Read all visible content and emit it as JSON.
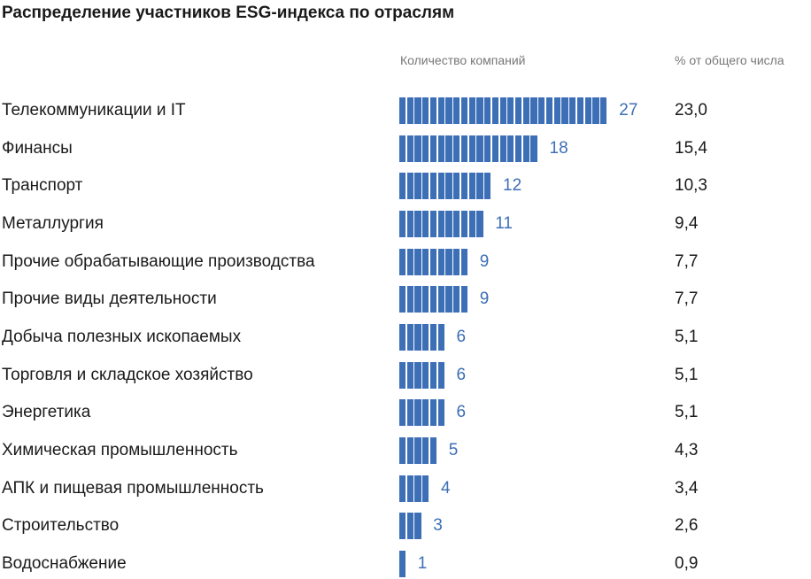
{
  "chart_data": {
    "type": "bar",
    "orientation": "horizontal",
    "title": "Распределение участников ESG-индекса по отраслям",
    "column_headers": [
      "Количество компаний",
      "% от общего числа"
    ],
    "bar_color": "#3d6fb6",
    "categories": [
      "Телекоммуникации и IT",
      "Финансы",
      "Транспорт",
      "Металлургия",
      "Прочие обрабатывающие производства",
      "Прочие виды деятельности",
      "Добыча полезных ископаемых",
      "Торговля и складское хозяйство",
      "Энергетика",
      "Химическая промышленность",
      "АПК и пищевая промышленность",
      "Строительство",
      "Водоснабжение"
    ],
    "values": [
      27,
      18,
      12,
      11,
      9,
      9,
      6,
      6,
      6,
      5,
      4,
      3,
      1
    ],
    "percent": [
      "23,0",
      "15,4",
      "10,3",
      "9,4",
      "7,7",
      "7,7",
      "5,1",
      "5,1",
      "5,1",
      "4,3",
      "3,4",
      "2,6",
      "0,9"
    ]
  }
}
